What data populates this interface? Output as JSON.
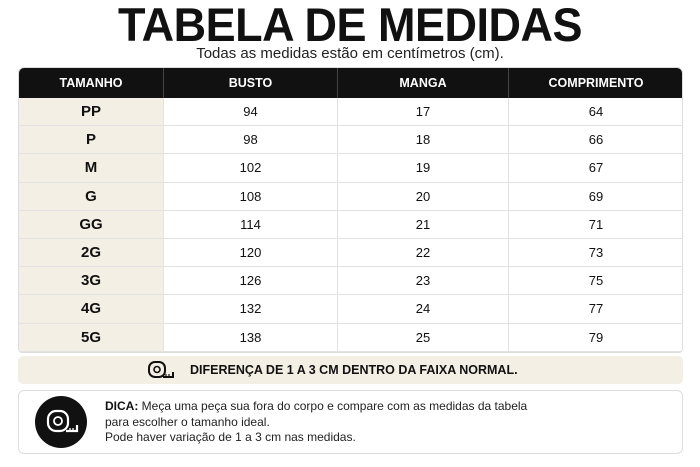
{
  "header": {
    "title": "TABELA DE MEDIDAS",
    "subtitle": "Todas as medidas estão em centímetros (cm)."
  },
  "table": {
    "columns": [
      "TAMANHO",
      "BUSTO",
      "MANGA",
      "COMPRIMENTO"
    ],
    "rows": [
      [
        "PP",
        94,
        17,
        64
      ],
      [
        "P",
        98,
        18,
        66
      ],
      [
        "M",
        102,
        19,
        67
      ],
      [
        "G",
        108,
        20,
        69
      ],
      [
        "GG",
        114,
        21,
        71
      ],
      [
        "2G",
        120,
        22,
        73
      ],
      [
        "3G",
        126,
        23,
        75
      ],
      [
        "4G",
        132,
        24,
        77
      ],
      [
        "5G",
        138,
        25,
        79
      ]
    ]
  },
  "note": {
    "text": "DIFERENÇA DE 1 A 3 CM DENTRO DA FAIXA NORMAL."
  },
  "tip": {
    "label": "DICA:",
    "lines": [
      "Meça uma peça sua fora do corpo e compare com as medidas da tabela",
      "para escolher o tamanho ideal.",
      "Pode haver variação de 1 a 3 cm nas medidas."
    ]
  }
}
